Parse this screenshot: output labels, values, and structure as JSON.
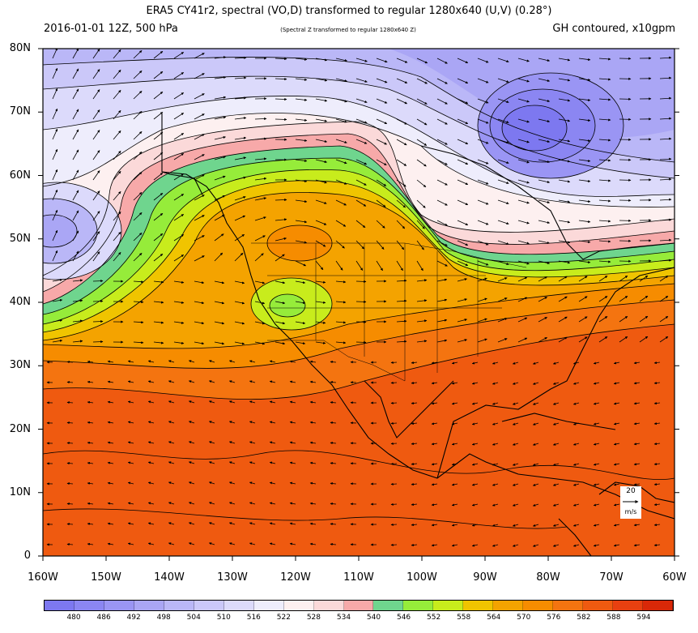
{
  "header": {
    "title": "ERA5 CY41r2, spectral (VO,D) transformed to regular 1280x640 (U,V) (0.28°)",
    "left_sub": "2016-01-01 12Z, 500 hPa",
    "mid_sub": "(Spectral Z transformed to regular 1280x640 Z)",
    "right_sub": "GH contoured, x10gpm"
  },
  "axes": {
    "lat_labels": [
      "80N",
      "70N",
      "60N",
      "50N",
      "40N",
      "30N",
      "20N",
      "10N",
      "0"
    ],
    "lon_labels": [
      "160W",
      "150W",
      "140W",
      "130W",
      "120W",
      "110W",
      "100W",
      "90W",
      "80W",
      "70W",
      "60W"
    ]
  },
  "legend": {
    "labels": [
      "480",
      "486",
      "492",
      "498",
      "504",
      "510",
      "516",
      "522",
      "528",
      "534",
      "540",
      "546",
      "552",
      "558",
      "564",
      "570",
      "576",
      "582",
      "588",
      "594"
    ],
    "colors": [
      "#7d78f0",
      "#8b86f2",
      "#9a95f4",
      "#aaa6f5",
      "#bab7f7",
      "#cbc8f9",
      "#dcdafb",
      "#eeedfc",
      "#fdf0f0",
      "#fbd9d9",
      "#f7a9a9",
      "#6fd58e",
      "#96ec3a",
      "#c8ec1c",
      "#f0c400",
      "#f4a300",
      "#f68c00",
      "#f47410",
      "#ef5a10",
      "#e84010",
      "#d92808"
    ]
  },
  "vector_ref": {
    "value": "20",
    "units": "m/s"
  }
}
